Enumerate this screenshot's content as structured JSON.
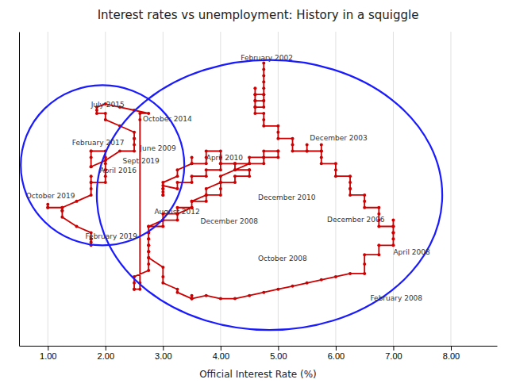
{
  "chart_data": {
    "type": "line",
    "title": "Interest rates vs unemployment: History in a squiggle",
    "x_label": "Official Interest Rate (%)",
    "xlim": [
      0.5,
      8.8
    ],
    "ylim": [
      3.0,
      13.0
    ],
    "xticks": [
      {
        "value": 1.0,
        "label": "1.00"
      },
      {
        "value": 2.0,
        "label": "2.00"
      },
      {
        "value": 3.0,
        "label": "3.00"
      },
      {
        "value": 4.0,
        "label": "4.00"
      },
      {
        "value": 5.0,
        "label": "5.00"
      },
      {
        "value": 6.0,
        "label": "6.00"
      },
      {
        "value": 7.0,
        "label": "7.00"
      },
      {
        "value": 8.0,
        "label": "8.00"
      }
    ],
    "tick_labels": "x",
    "grid": true,
    "color": "#cc0000",
    "marker": "circle",
    "x": [
      4.75,
      4.75,
      4.75,
      4.75,
      4.75,
      4.75,
      4.6,
      4.6,
      4.6,
      4.6,
      4.75,
      4.75,
      4.75,
      4.75,
      4.6,
      4.6,
      4.6,
      4.6,
      4.75,
      4.75,
      4.75,
      5.0,
      5.0,
      5.0,
      5.25,
      5.25,
      5.25,
      5.5,
      5.5,
      5.5,
      5.75,
      5.75,
      5.75,
      5.75,
      5.75,
      6.0,
      6.0,
      6.0,
      6.25,
      6.25,
      6.25,
      6.25,
      6.25,
      6.5,
      6.5,
      6.5,
      6.75,
      6.75,
      6.75,
      6.75,
      7.0,
      7.0,
      7.0,
      7.0,
      7.0,
      7.0,
      7.0,
      6.75,
      6.75,
      6.5,
      6.5,
      6.5,
      6.25,
      6.0,
      5.75,
      5.5,
      5.25,
      5.0,
      4.75,
      4.5,
      4.25,
      4.0,
      3.75,
      3.5,
      3.5,
      3.5,
      3.5,
      3.25,
      3.25,
      3.0,
      3.0,
      3.0,
      2.75,
      2.75,
      2.75,
      2.75,
      2.75,
      2.75,
      3.0,
      3.0,
      3.25,
      3.25,
      3.5,
      3.5,
      3.75,
      3.75,
      4.0,
      4.0,
      4.0,
      4.25,
      4.25,
      4.5,
      4.5,
      4.5,
      4.25,
      4.25,
      4.0,
      4.0,
      4.0,
      3.75,
      3.75,
      3.75,
      3.5,
      3.5,
      3.5,
      3.25,
      3.25,
      3.0,
      3.0,
      3.0,
      3.0,
      3.0,
      3.0,
      3.0,
      3.25,
      3.25,
      3.5,
      3.5,
      3.75,
      3.75,
      4.0,
      4.0,
      4.25,
      4.5,
      4.75,
      4.75,
      5.0,
      5.0,
      5.0,
      4.75,
      4.75,
      4.5,
      4.5,
      4.25,
      4.0,
      4.0,
      3.75,
      3.75,
      3.5,
      3.5,
      3.25,
      3.25,
      3.0,
      3.0,
      2.75,
      2.75,
      2.75,
      2.75,
      2.75,
      2.75,
      2.75,
      2.75,
      2.5,
      2.5,
      2.5,
      2.5,
      2.6,
      2.6,
      2.6,
      2.6,
      2.75,
      2.5,
      2.25,
      2.0,
      1.85,
      1.85,
      1.85,
      2.0,
      2.0,
      2.25,
      2.5,
      2.5,
      2.5,
      2.5,
      2.5,
      2.25,
      2.0,
      1.75,
      1.75,
      1.75,
      1.75,
      1.75,
      2.0,
      2.0,
      2.0,
      2.0,
      2.0,
      2.0,
      2.0,
      1.75,
      1.75,
      1.75,
      1.75,
      1.75,
      1.5,
      1.25,
      1.0,
      1.0,
      1.0,
      1.25,
      1.25,
      1.25,
      1.25,
      1.5,
      1.75,
      1.75,
      1.75,
      1.75,
      1.75
    ],
    "values": [
      12.0,
      11.8,
      11.6,
      11.4,
      11.2,
      11.0,
      11.0,
      11.2,
      11.0,
      10.8,
      10.8,
      11.0,
      10.8,
      10.6,
      10.6,
      10.8,
      10.6,
      10.4,
      10.4,
      10.2,
      10.0,
      10.0,
      9.8,
      9.6,
      9.6,
      9.4,
      9.2,
      9.2,
      9.4,
      9.2,
      9.2,
      9.4,
      9.2,
      9.0,
      8.8,
      8.8,
      8.6,
      8.4,
      8.4,
      8.2,
      8.0,
      8.0,
      7.8,
      7.8,
      7.6,
      7.4,
      7.4,
      7.2,
      7.0,
      6.8,
      6.8,
      7.0,
      6.8,
      6.6,
      6.6,
      6.4,
      6.2,
      6.2,
      5.9,
      5.9,
      5.6,
      5.3,
      5.3,
      5.2,
      5.1,
      5.0,
      4.9,
      4.8,
      4.7,
      4.6,
      4.5,
      4.5,
      4.6,
      4.5,
      4.5,
      4.6,
      4.5,
      4.7,
      4.8,
      5.0,
      5.2,
      5.5,
      5.8,
      6.0,
      6.2,
      6.4,
      6.6,
      6.8,
      7.0,
      7.2,
      7.2,
      7.4,
      7.4,
      7.6,
      7.6,
      7.8,
      7.8,
      8.0,
      8.2,
      8.2,
      8.4,
      8.4,
      8.6,
      8.6,
      8.6,
      8.8,
      8.8,
      9.0,
      9.2,
      9.2,
      9.0,
      8.8,
      8.8,
      9.0,
      8.8,
      8.6,
      8.4,
      8.2,
      8.0,
      7.8,
      7.8,
      7.9,
      8.0,
      8.1,
      8.0,
      8.2,
      8.2,
      8.4,
      8.4,
      8.6,
      8.6,
      8.8,
      8.8,
      8.8,
      8.8,
      9.0,
      9.0,
      9.2,
      9.2,
      9.2,
      9.0,
      9.0,
      8.8,
      8.6,
      8.4,
      8.2,
      8.0,
      7.8,
      7.6,
      7.4,
      7.2,
      7.0,
      7.0,
      6.8,
      6.8,
      6.6,
      6.4,
      6.2,
      6.0,
      5.8,
      5.6,
      5.4,
      5.2,
      5.0,
      4.8,
      4.8,
      4.8,
      5.0,
      10.2,
      10.4,
      10.4,
      10.5,
      10.6,
      10.7,
      10.6,
      10.5,
      10.4,
      10.4,
      10.2,
      10.0,
      9.8,
      9.6,
      9.6,
      9.4,
      9.2,
      9.2,
      8.9,
      8.7,
      8.7,
      9.0,
      9.2,
      9.2,
      9.2,
      9.0,
      8.8,
      8.6,
      8.6,
      8.4,
      8.2,
      8.2,
      8.4,
      8.2,
      8.0,
      7.8,
      7.6,
      7.4,
      7.4,
      7.5,
      7.4,
      7.4,
      7.3,
      7.3,
      7.1,
      6.8,
      6.6,
      6.4,
      6.4,
      6.3,
      6.2
    ],
    "ellipses": [
      {
        "cx": 1.95,
        "cy": 8.75,
        "rx": 1.42,
        "ry": 2.55,
        "color": "#1a1aff"
      },
      {
        "cx": 4.85,
        "cy": 7.8,
        "rx": 3.0,
        "ry": 4.3,
        "color": "#1a1aff"
      }
    ],
    "annotations": [
      {
        "label": "February 2002",
        "x": 4.35,
        "y": 12.05
      },
      {
        "label": "October 2014",
        "x": 2.65,
        "y": 10.1
      },
      {
        "label": "July 2015",
        "x": 1.75,
        "y": 10.55
      },
      {
        "label": "February 2017",
        "x": 1.42,
        "y": 9.35
      },
      {
        "label": "April 2016",
        "x": 1.9,
        "y": 8.45
      },
      {
        "label": "Sept 2019",
        "x": 2.3,
        "y": 8.75
      },
      {
        "label": "June 2009",
        "x": 2.6,
        "y": 9.15
      },
      {
        "label": "October 2019",
        "x": 0.62,
        "y": 7.65
      },
      {
        "label": "February 2019",
        "x": 1.65,
        "y": 6.35
      },
      {
        "label": "April 2010",
        "x": 3.75,
        "y": 8.85
      },
      {
        "label": "August 2012",
        "x": 2.85,
        "y": 7.15
      },
      {
        "label": "December 2003",
        "x": 5.55,
        "y": 9.5
      },
      {
        "label": "December 2010",
        "x": 4.65,
        "y": 7.6
      },
      {
        "label": "December 2008",
        "x": 3.65,
        "y": 6.85
      },
      {
        "label": "October 2008",
        "x": 4.65,
        "y": 5.65
      },
      {
        "label": "December 2006",
        "x": 5.85,
        "y": 6.9
      },
      {
        "label": "April 2008",
        "x": 7.0,
        "y": 5.85
      },
      {
        "label": "February 2008",
        "x": 6.6,
        "y": 4.4
      }
    ]
  }
}
